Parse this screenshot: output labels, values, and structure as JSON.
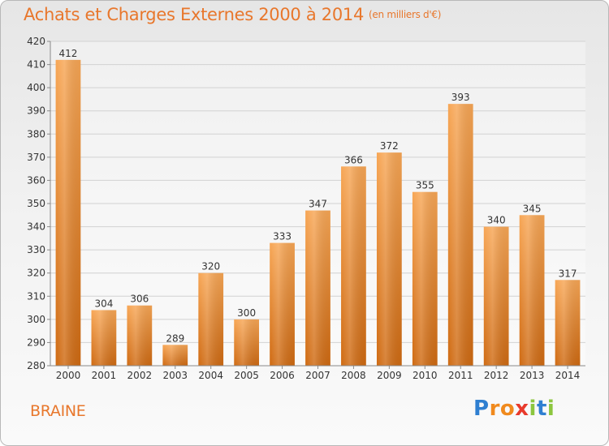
{
  "chart_data": {
    "type": "bar",
    "title": "Achats et Charges Externes 2000 à 2014",
    "unit_note": "(en milliers d'€)",
    "categories": [
      "2000",
      "2001",
      "2002",
      "2003",
      "2004",
      "2005",
      "2006",
      "2007",
      "2008",
      "2009",
      "2010",
      "2011",
      "2012",
      "2013",
      "2014"
    ],
    "values": [
      412,
      304,
      306,
      289,
      320,
      300,
      333,
      347,
      366,
      372,
      355,
      393,
      340,
      345,
      317
    ],
    "data_labels": [
      "412",
      "304",
      "306",
      "289",
      "320",
      "300",
      "333",
      "347",
      "366",
      "372",
      "355",
      "393",
      "340",
      "345",
      "317"
    ],
    "y_ticks": [
      "280",
      "290",
      "300",
      "310",
      "320",
      "330",
      "340",
      "350",
      "360",
      "370",
      "380",
      "390",
      "400",
      "410",
      "420"
    ],
    "ylim": [
      280,
      420
    ],
    "xlabel": "",
    "ylabel": "",
    "grid": true,
    "bar_color_top": "#f7a655",
    "bar_color_bottom": "#cf6a12"
  },
  "commune": "BRAINE",
  "logo": {
    "letters": [
      "P",
      "r",
      "o",
      "x",
      "i",
      "t",
      "i"
    ],
    "colors": [
      "#2f7fd1",
      "#f08a1e",
      "#f08a1e",
      "#e83a2c",
      "#8cc63f",
      "#2f7fd1",
      "#8cc63f"
    ]
  }
}
